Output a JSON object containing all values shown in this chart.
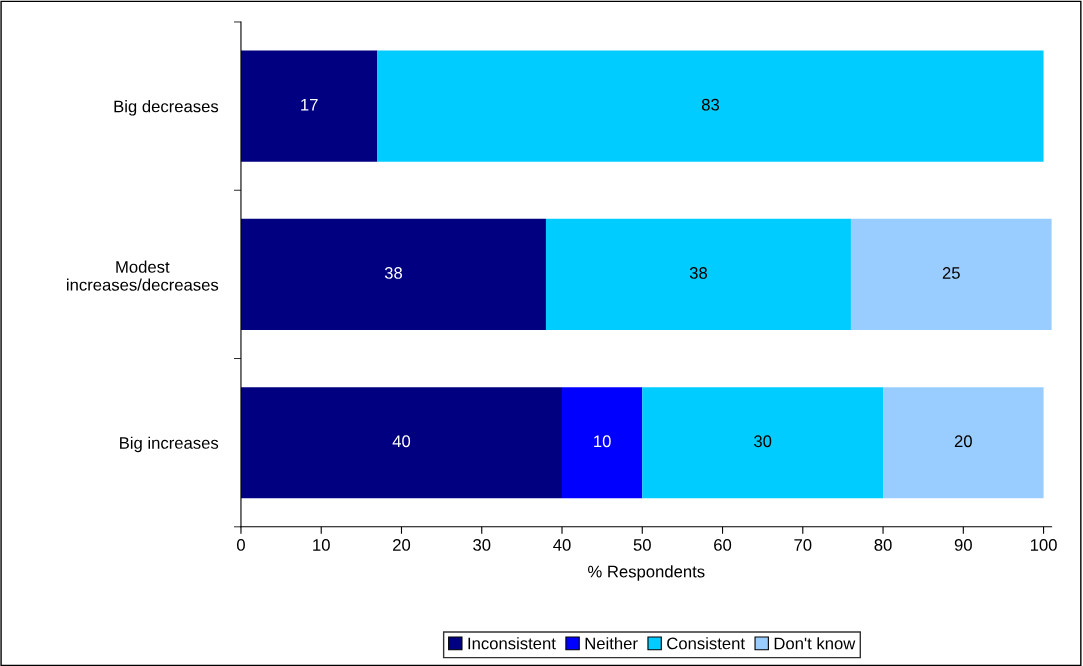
{
  "chart_data": {
    "type": "bar",
    "orientation": "horizontal",
    "stacked": true,
    "xlabel": "% Respondents",
    "categories": [
      "Big decreases",
      "Modest increases/decreases",
      "Big increases"
    ],
    "series": [
      {
        "name": "Inconsistent",
        "color": "#000080",
        "values": [
          17,
          38,
          40
        ]
      },
      {
        "name": "Neither",
        "color": "#0000ff",
        "values": [
          null,
          null,
          10
        ]
      },
      {
        "name": "Consistent",
        "color": "#00ccff",
        "values": [
          83,
          38,
          30
        ]
      },
      {
        "name": "Don't know",
        "color": "#99ccff",
        "values": [
          null,
          25,
          20
        ]
      }
    ],
    "xlim": [
      0,
      101
    ],
    "xticks": [
      0,
      10,
      20,
      30,
      40,
      50,
      60,
      70,
      80,
      90,
      100
    ],
    "data_labels": true,
    "grid": false,
    "legend": "bottom"
  }
}
